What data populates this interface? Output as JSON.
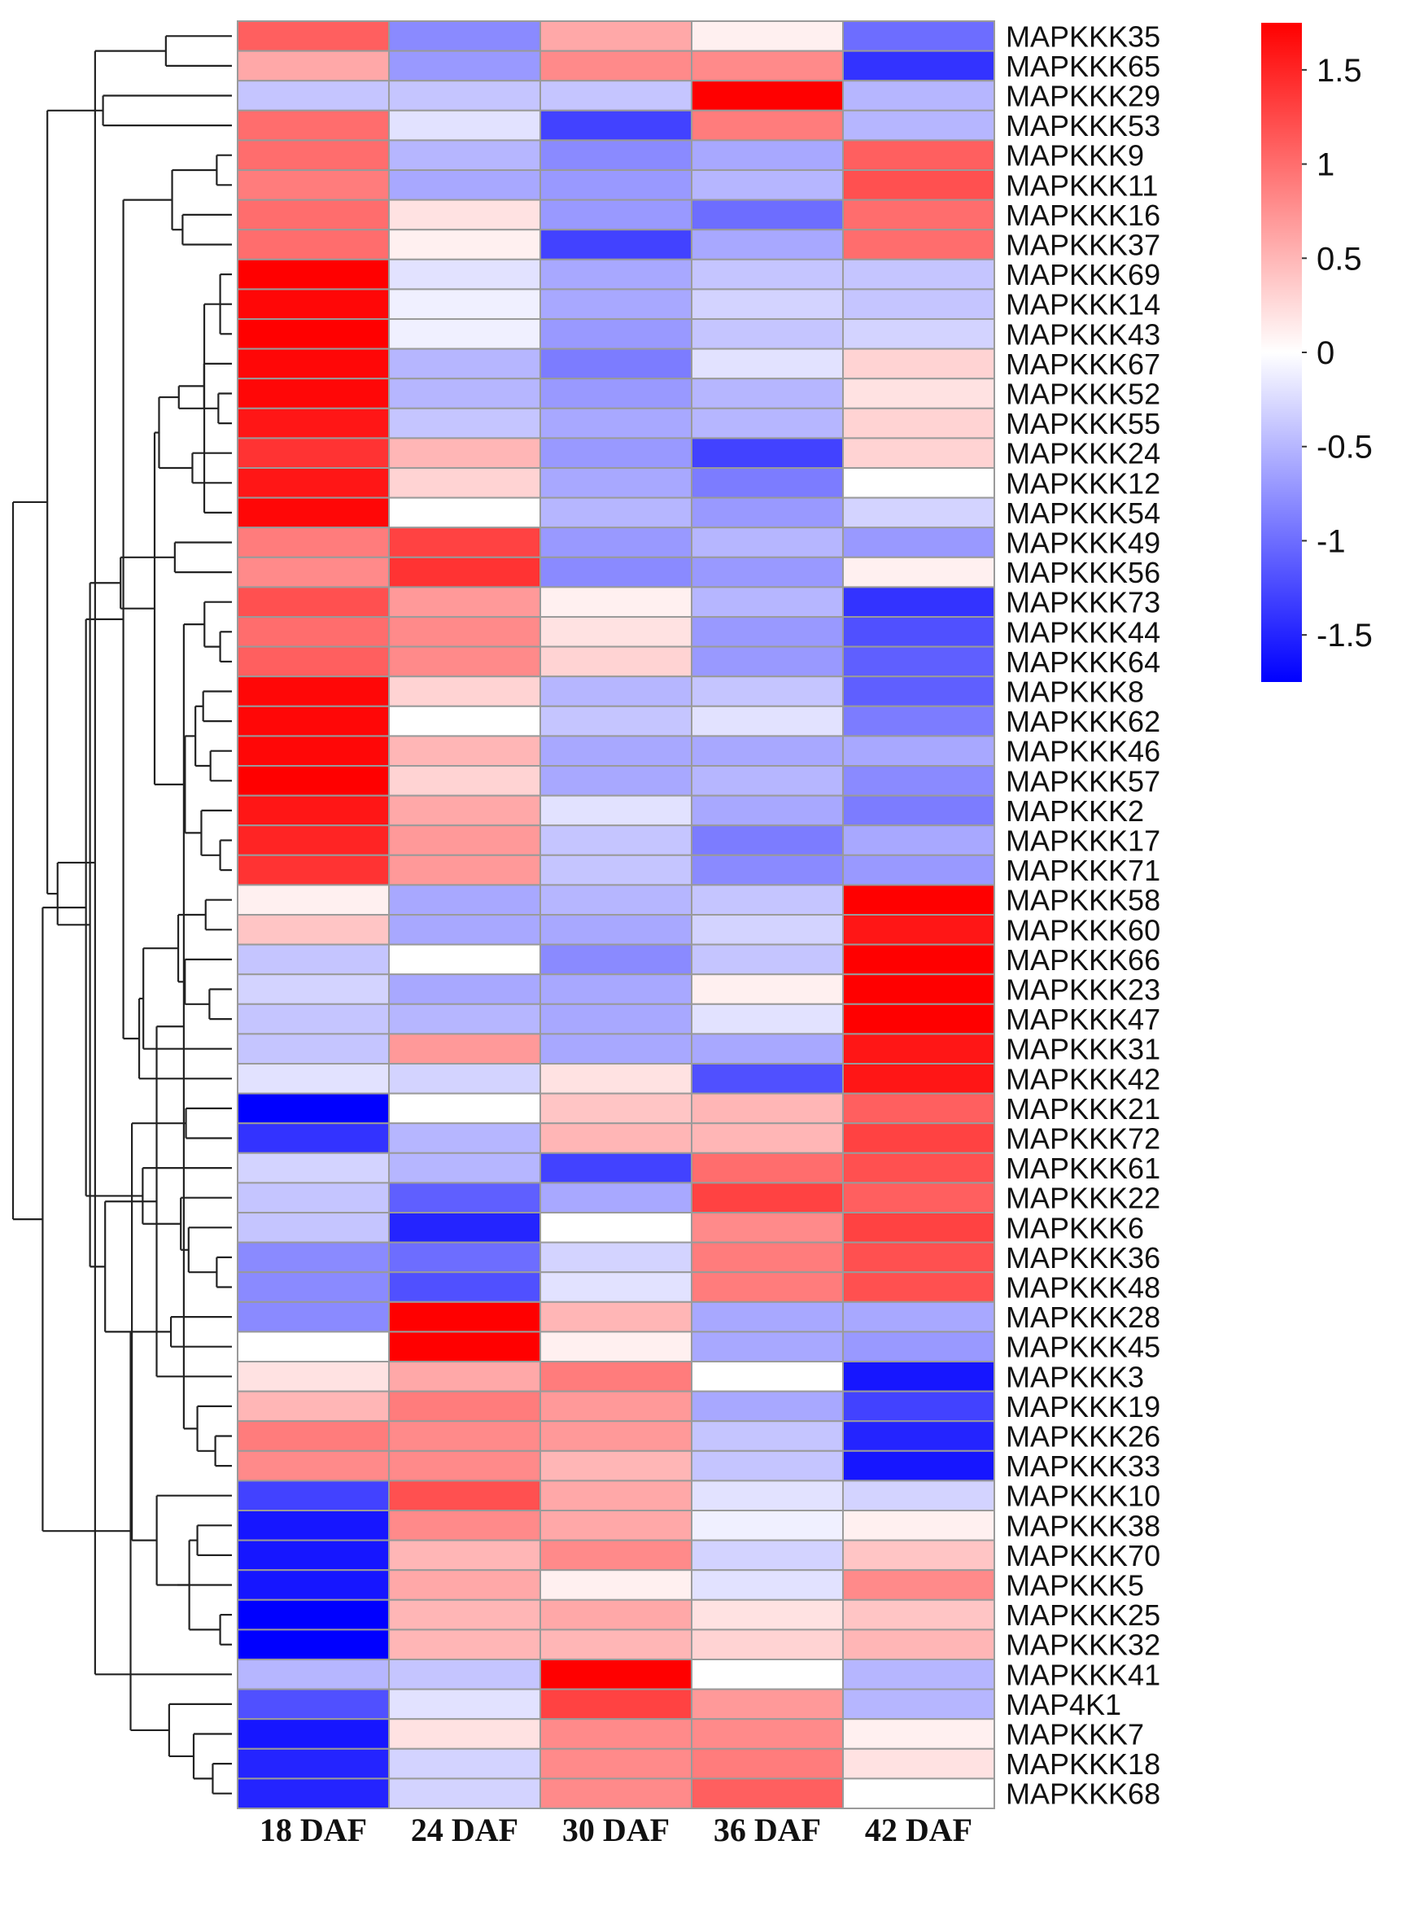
{
  "chart_data": {
    "type": "heatmap",
    "title": "",
    "columns": [
      "18 DAF",
      "24 DAF",
      "30 DAF",
      "36 DAF",
      "42 DAF"
    ],
    "rows": [
      {
        "gene": "MAPKKK35",
        "values": [
          1.1,
          -0.8,
          0.6,
          0.1,
          -1.0
        ]
      },
      {
        "gene": "MAPKKK65",
        "values": [
          0.6,
          -0.7,
          0.8,
          0.8,
          -1.4
        ]
      },
      {
        "gene": "MAPKKK29",
        "values": [
          -0.4,
          -0.4,
          -0.4,
          1.8,
          -0.5
        ]
      },
      {
        "gene": "MAPKKK53",
        "values": [
          1.0,
          -0.2,
          -1.3,
          0.9,
          -0.5
        ]
      },
      {
        "gene": "MAPKKK9",
        "values": [
          1.0,
          -0.5,
          -0.8,
          -0.6,
          1.1
        ]
      },
      {
        "gene": "MAPKKK11",
        "values": [
          0.9,
          -0.6,
          -0.7,
          -0.5,
          1.2
        ]
      },
      {
        "gene": "MAPKKK16",
        "values": [
          1.0,
          0.2,
          -0.7,
          -1.0,
          1.0
        ]
      },
      {
        "gene": "MAPKKK37",
        "values": [
          1.0,
          0.1,
          -1.3,
          -0.6,
          1.0
        ]
      },
      {
        "gene": "MAPKKK69",
        "values": [
          1.8,
          -0.2,
          -0.6,
          -0.4,
          -0.4
        ]
      },
      {
        "gene": "MAPKKK14",
        "values": [
          1.7,
          -0.1,
          -0.6,
          -0.3,
          -0.4
        ]
      },
      {
        "gene": "MAPKKK43",
        "values": [
          1.8,
          -0.1,
          -0.7,
          -0.4,
          -0.3
        ]
      },
      {
        "gene": "MAPKKK67",
        "values": [
          1.7,
          -0.5,
          -0.9,
          -0.2,
          0.3
        ]
      },
      {
        "gene": "MAPKKK52",
        "values": [
          1.7,
          -0.5,
          -0.7,
          -0.5,
          0.2
        ]
      },
      {
        "gene": "MAPKKK55",
        "values": [
          1.6,
          -0.4,
          -0.6,
          -0.5,
          0.3
        ]
      },
      {
        "gene": "MAPKKK24",
        "values": [
          1.4,
          0.5,
          -0.7,
          -1.3,
          0.3
        ]
      },
      {
        "gene": "MAPKKK12",
        "values": [
          1.6,
          0.3,
          -0.6,
          -0.9,
          0.0
        ]
      },
      {
        "gene": "MAPKKK54",
        "values": [
          1.7,
          0.0,
          -0.5,
          -0.7,
          -0.3
        ]
      },
      {
        "gene": "MAPKKK49",
        "values": [
          0.9,
          1.3,
          -0.7,
          -0.5,
          -0.7
        ]
      },
      {
        "gene": "MAPKKK56",
        "values": [
          0.8,
          1.4,
          -0.8,
          -0.7,
          0.1
        ]
      },
      {
        "gene": "MAPKKK73",
        "values": [
          1.2,
          0.7,
          0.1,
          -0.5,
          -1.4
        ]
      },
      {
        "gene": "MAPKKK44",
        "values": [
          1.0,
          0.8,
          0.2,
          -0.7,
          -1.2
        ]
      },
      {
        "gene": "MAPKKK64",
        "values": [
          1.1,
          0.8,
          0.3,
          -0.7,
          -1.1
        ]
      },
      {
        "gene": "MAPKKK8",
        "values": [
          1.7,
          0.3,
          -0.5,
          -0.4,
          -1.1
        ]
      },
      {
        "gene": "MAPKKK62",
        "values": [
          1.7,
          0.0,
          -0.4,
          -0.2,
          -0.9
        ]
      },
      {
        "gene": "MAPKKK46",
        "values": [
          1.7,
          0.5,
          -0.6,
          -0.6,
          -0.6
        ]
      },
      {
        "gene": "MAPKKK57",
        "values": [
          1.8,
          0.3,
          -0.6,
          -0.5,
          -0.8
        ]
      },
      {
        "gene": "MAPKKK2",
        "values": [
          1.6,
          0.6,
          -0.2,
          -0.6,
          -0.9
        ]
      },
      {
        "gene": "MAPKKK17",
        "values": [
          1.5,
          0.7,
          -0.4,
          -0.9,
          -0.6
        ]
      },
      {
        "gene": "MAPKKK71",
        "values": [
          1.4,
          0.7,
          -0.4,
          -0.8,
          -0.7
        ]
      },
      {
        "gene": "MAPKKK58",
        "values": [
          0.1,
          -0.6,
          -0.5,
          -0.4,
          1.8
        ]
      },
      {
        "gene": "MAPKKK60",
        "values": [
          0.4,
          -0.6,
          -0.6,
          -0.3,
          1.6
        ]
      },
      {
        "gene": "MAPKKK66",
        "values": [
          -0.4,
          0.0,
          -0.8,
          -0.4,
          1.8
        ]
      },
      {
        "gene": "MAPKKK23",
        "values": [
          -0.3,
          -0.6,
          -0.6,
          0.1,
          1.8
        ]
      },
      {
        "gene": "MAPKKK47",
        "values": [
          -0.4,
          -0.5,
          -0.6,
          -0.2,
          1.8
        ]
      },
      {
        "gene": "MAPKKK31",
        "values": [
          -0.4,
          0.7,
          -0.6,
          -0.6,
          1.6
        ]
      },
      {
        "gene": "MAPKKK42",
        "values": [
          -0.2,
          -0.3,
          0.2,
          -1.2,
          1.6
        ]
      },
      {
        "gene": "MAPKKK21",
        "values": [
          -1.8,
          0.0,
          0.4,
          0.5,
          1.1
        ]
      },
      {
        "gene": "MAPKKK72",
        "values": [
          -1.4,
          -0.5,
          0.5,
          0.5,
          1.3
        ]
      },
      {
        "gene": "MAPKKK61",
        "values": [
          -0.3,
          -0.5,
          -1.3,
          1.0,
          1.2
        ]
      },
      {
        "gene": "MAPKKK22",
        "values": [
          -0.4,
          -1.1,
          -0.6,
          1.3,
          1.1
        ]
      },
      {
        "gene": "MAPKKK6",
        "values": [
          -0.4,
          -1.5,
          0.0,
          0.8,
          1.3
        ]
      },
      {
        "gene": "MAPKKK36",
        "values": [
          -0.8,
          -1.0,
          -0.3,
          0.9,
          1.2
        ]
      },
      {
        "gene": "MAPKKK48",
        "values": [
          -0.8,
          -1.2,
          -0.2,
          0.9,
          1.2
        ]
      },
      {
        "gene": "MAPKKK28",
        "values": [
          -0.8,
          1.8,
          0.5,
          -0.6,
          -0.6
        ]
      },
      {
        "gene": "MAPKKK45",
        "values": [
          0.0,
          1.8,
          0.1,
          -0.6,
          -0.7
        ]
      },
      {
        "gene": "MAPKKK3",
        "values": [
          0.2,
          0.6,
          0.9,
          0.0,
          -1.6
        ]
      },
      {
        "gene": "MAPKKK19",
        "values": [
          0.5,
          0.9,
          0.7,
          -0.6,
          -1.3
        ]
      },
      {
        "gene": "MAPKKK26",
        "values": [
          0.9,
          0.8,
          0.7,
          -0.4,
          -1.5
        ]
      },
      {
        "gene": "MAPKKK33",
        "values": [
          0.8,
          0.8,
          0.5,
          -0.4,
          -1.6
        ]
      },
      {
        "gene": "MAPKKK10",
        "values": [
          -1.3,
          1.2,
          0.6,
          -0.2,
          -0.3
        ]
      },
      {
        "gene": "MAPKKK38",
        "values": [
          -1.6,
          0.8,
          0.6,
          -0.1,
          0.1
        ]
      },
      {
        "gene": "MAPKKK70",
        "values": [
          -1.6,
          0.5,
          0.8,
          -0.3,
          0.4
        ]
      },
      {
        "gene": "MAPKKK5",
        "values": [
          -1.6,
          0.6,
          0.1,
          -0.2,
          0.8
        ]
      },
      {
        "gene": "MAPKKK25",
        "values": [
          -1.8,
          0.5,
          0.6,
          0.2,
          0.4
        ]
      },
      {
        "gene": "MAPKKK32",
        "values": [
          -1.8,
          0.5,
          0.5,
          0.3,
          0.5
        ]
      },
      {
        "gene": "MAPKKK41",
        "values": [
          -0.5,
          -0.4,
          1.8,
          0.0,
          -0.5
        ]
      },
      {
        "gene": "MAP4K1",
        "values": [
          -1.2,
          -0.2,
          1.3,
          0.7,
          -0.5
        ]
      },
      {
        "gene": "MAPKKK7",
        "values": [
          -1.6,
          0.2,
          0.8,
          0.8,
          0.1
        ]
      },
      {
        "gene": "MAPKKK18",
        "values": [
          -1.5,
          -0.3,
          0.8,
          0.9,
          0.2
        ]
      },
      {
        "gene": "MAPKKK68",
        "values": [
          -1.5,
          -0.3,
          0.8,
          1.1,
          0.0
        ]
      }
    ],
    "color_scale": {
      "min": -1.75,
      "max": 1.75,
      "low_color": "#0000ff",
      "mid_color": "#ffffff",
      "high_color": "#ff0000",
      "ticks": [
        1.5,
        1,
        0.5,
        0,
        -0.5,
        -1,
        -1.5
      ]
    },
    "dendrogram_side": "left",
    "legend_position": "top-right",
    "grid": false
  }
}
